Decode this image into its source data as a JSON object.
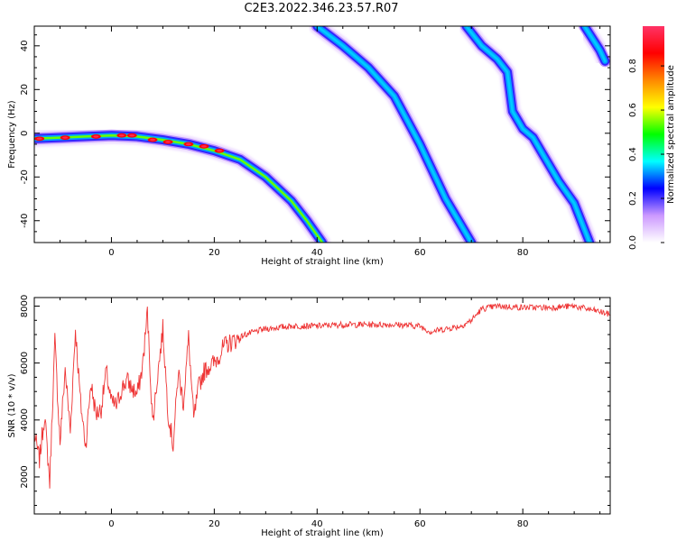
{
  "figure": {
    "title": "C2E3.2022.346.23.57.R07"
  },
  "colormap": [
    "#ffffff",
    "#cc99ff",
    "#0000ff",
    "#00ffff",
    "#00ff00",
    "#ffff00",
    "#ff8800",
    "#ff0000",
    "#ff3366"
  ],
  "chart_data": [
    {
      "type": "heatmap",
      "panel": "spectrogram",
      "xlabel": "Height of straight line (km)",
      "ylabel": "Frequency (Hz)",
      "xlim": [
        -15,
        97
      ],
      "ylim": [
        -50,
        49
      ],
      "xticks": [
        0,
        20,
        40,
        60,
        80
      ],
      "yticks": [
        -40,
        -20,
        0,
        20,
        40
      ],
      "colorbar": {
        "label": "Normalized spectral amplitude",
        "range": [
          0.0,
          0.98
        ],
        "ticks": [
          0.0,
          0.2,
          0.4,
          0.6,
          0.8
        ]
      },
      "tracks": [
        {
          "name": "track-1",
          "intensity": 0.55,
          "points": [
            [
              -15,
              -2.5
            ],
            [
              -10,
              -2
            ],
            [
              -5,
              -1.5
            ],
            [
              0,
              -1
            ],
            [
              5,
              -1.5
            ],
            [
              10,
              -3
            ],
            [
              15,
              -5
            ],
            [
              20,
              -8
            ],
            [
              25,
              -12
            ],
            [
              30,
              -20
            ],
            [
              35,
              -31
            ],
            [
              38,
              -40
            ],
            [
              41,
              -50
            ]
          ],
          "hot": [
            [
              -14,
              -2.5
            ],
            [
              -9,
              -2
            ],
            [
              -3,
              -1.5
            ],
            [
              2,
              -1
            ],
            [
              4,
              -1
            ],
            [
              8,
              -3
            ],
            [
              11,
              -4
            ],
            [
              15,
              -5
            ],
            [
              18,
              -6
            ],
            [
              21,
              -8
            ]
          ]
        },
        {
          "name": "track-2",
          "intensity": 0.35,
          "points": [
            [
              40,
              49
            ],
            [
              45,
              40
            ],
            [
              50,
              30
            ],
            [
              55,
              17
            ],
            [
              60,
              -5
            ],
            [
              65,
              -30
            ],
            [
              70,
              -50
            ]
          ]
        },
        {
          "name": "track-3",
          "intensity": 0.35,
          "points": [
            [
              69,
              49
            ],
            [
              72,
              40
            ],
            [
              75,
              34
            ],
            [
              77,
              28
            ],
            [
              78,
              10
            ],
            [
              80,
              2
            ],
            [
              82,
              -2
            ],
            [
              84,
              -10
            ],
            [
              87,
              -22
            ],
            [
              90,
              -32
            ],
            [
              93,
              -50
            ]
          ]
        },
        {
          "name": "track-4",
          "intensity": 0.35,
          "points": [
            [
              92,
              49
            ],
            [
              95,
              38
            ],
            [
              96,
              33
            ]
          ]
        }
      ]
    },
    {
      "type": "line",
      "panel": "snr",
      "xlabel": "Height of straight line (km)",
      "ylabel": "SNR (10 * v/v)",
      "xlim": [
        -15,
        97
      ],
      "ylim": [
        700,
        8300
      ],
      "xticks": [
        0,
        20,
        40,
        60,
        80
      ],
      "yticks": [
        2000,
        4000,
        6000,
        8000
      ],
      "color": "#ee3333",
      "series": [
        {
          "x": [
            -15,
            -14,
            -13,
            -12,
            -11,
            -10,
            -9,
            -8,
            -7,
            -6,
            -5,
            -4,
            -3,
            -2,
            -1,
            0,
            1,
            2,
            3,
            4,
            5,
            6,
            7,
            8,
            9,
            10,
            11,
            12,
            13,
            14,
            15,
            16,
            17,
            18,
            19,
            20,
            22,
            24,
            26,
            28,
            30,
            35,
            40,
            45,
            50,
            55,
            60,
            62,
            65,
            68,
            70,
            72,
            75,
            80,
            85,
            90,
            95,
            97
          ],
          "y": [
            3500,
            2600,
            4200,
            1800,
            6800,
            3200,
            5800,
            3600,
            7200,
            4600,
            3100,
            5300,
            4200,
            4400,
            5700,
            4600,
            4500,
            5100,
            5400,
            5100,
            4900,
            5800,
            7800,
            3900,
            5600,
            7200,
            4300,
            3100,
            5700,
            4600,
            6900,
            4000,
            5200,
            5700,
            5900,
            6000,
            6600,
            6800,
            7000,
            7100,
            7200,
            7300,
            7300,
            7350,
            7350,
            7350,
            7300,
            7100,
            7200,
            7300,
            7500,
            7900,
            8000,
            7950,
            7950,
            8000,
            7800,
            7700
          ]
        }
      ]
    }
  ]
}
